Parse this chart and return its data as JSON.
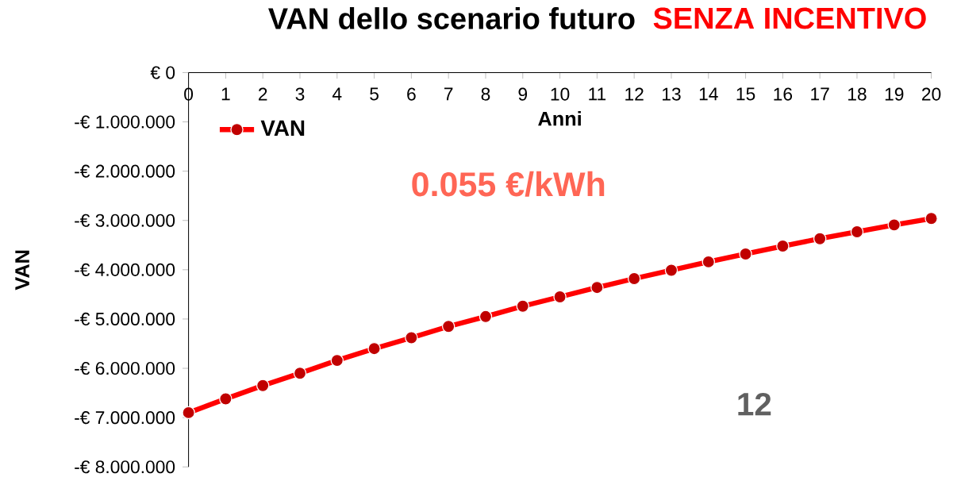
{
  "chart_data": {
    "type": "line",
    "title": "VAN dello scenario futuro",
    "xlabel": "Anni",
    "ylabel": "VAN",
    "x": [
      0,
      1,
      2,
      3,
      4,
      5,
      6,
      7,
      8,
      9,
      10,
      11,
      12,
      13,
      14,
      15,
      16,
      17,
      18,
      19,
      20
    ],
    "series": [
      {
        "name": "VAN",
        "color": "#ff0000",
        "values": [
          -6900000,
          -6620000,
          -6350000,
          -6100000,
          -5840000,
          -5600000,
          -5380000,
          -5150000,
          -4950000,
          -4740000,
          -4550000,
          -4360000,
          -4180000,
          -4010000,
          -3840000,
          -3680000,
          -3520000,
          -3370000,
          -3230000,
          -3090000,
          -2960000
        ]
      }
    ],
    "marker": "circle",
    "line_style": "solid",
    "legend": "top left",
    "grid": false,
    "xlim": [
      0,
      20
    ],
    "xticks": [
      0,
      1,
      2,
      3,
      4,
      5,
      6,
      7,
      8,
      9,
      10,
      11,
      12,
      13,
      14,
      15,
      16,
      17,
      18,
      19,
      20
    ],
    "ylim": [
      -8000000,
      0
    ],
    "yticks": [
      {
        "value": 0,
        "label": "€ 0"
      },
      {
        "value": -1000000,
        "label": "-€ 1.000.000"
      },
      {
        "value": -2000000,
        "label": "-€ 2.000.000"
      },
      {
        "value": -3000000,
        "label": "-€ 3.000.000"
      },
      {
        "value": -4000000,
        "label": "-€ 4.000.000"
      },
      {
        "value": -5000000,
        "label": "-€ 5.000.000"
      },
      {
        "value": -6000000,
        "label": "-€ 6.000.000"
      },
      {
        "value": -7000000,
        "label": "-€ 7.000.000"
      },
      {
        "value": -8000000,
        "label": "-€ 8.000.000"
      }
    ],
    "annotations": [
      "SENZA INCENTIVO",
      "0.055 €/kWh",
      "12"
    ]
  }
}
